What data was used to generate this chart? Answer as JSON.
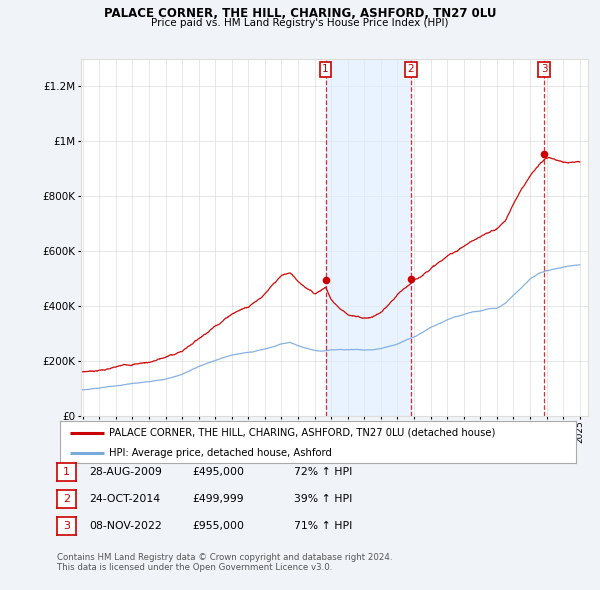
{
  "title": "PALACE CORNER, THE HILL, CHARING, ASHFORD, TN27 0LU",
  "subtitle": "Price paid vs. HM Land Registry's House Price Index (HPI)",
  "red_label": "PALACE CORNER, THE HILL, CHARING, ASHFORD, TN27 0LU (detached house)",
  "blue_label": "HPI: Average price, detached house, Ashford",
  "sales": [
    {
      "num": 1,
      "date": "28-AUG-2009",
      "price": 495000,
      "pct": "72%",
      "dir": "↑",
      "year": 2009.66
    },
    {
      "num": 2,
      "date": "24-OCT-2014",
      "price": 499999,
      "pct": "39%",
      "dir": "↑",
      "year": 2014.81
    },
    {
      "num": 3,
      "date": "08-NOV-2022",
      "price": 955000,
      "pct": "71%",
      "dir": "↑",
      "year": 2022.86
    }
  ],
  "footer1": "Contains HM Land Registry data © Crown copyright and database right 2024.",
  "footer2": "This data is licensed under the Open Government Licence v3.0.",
  "ylim_max": 1300000,
  "xlim_start": 1994.9,
  "xlim_end": 2025.5,
  "background_color": "#f0f4f8",
  "plot_bg": "#ffffff",
  "red_color": "#cc0000",
  "blue_color": "#7aaadd",
  "shade_color": "#ddeeff",
  "grid_color": "#dddddd",
  "yticks": [
    0,
    200000,
    400000,
    600000,
    800000,
    1000000,
    1200000
  ],
  "ytick_labels": [
    "£0",
    "£200K",
    "£400K",
    "£600K",
    "£800K",
    "£1M",
    "£1.2M"
  ]
}
